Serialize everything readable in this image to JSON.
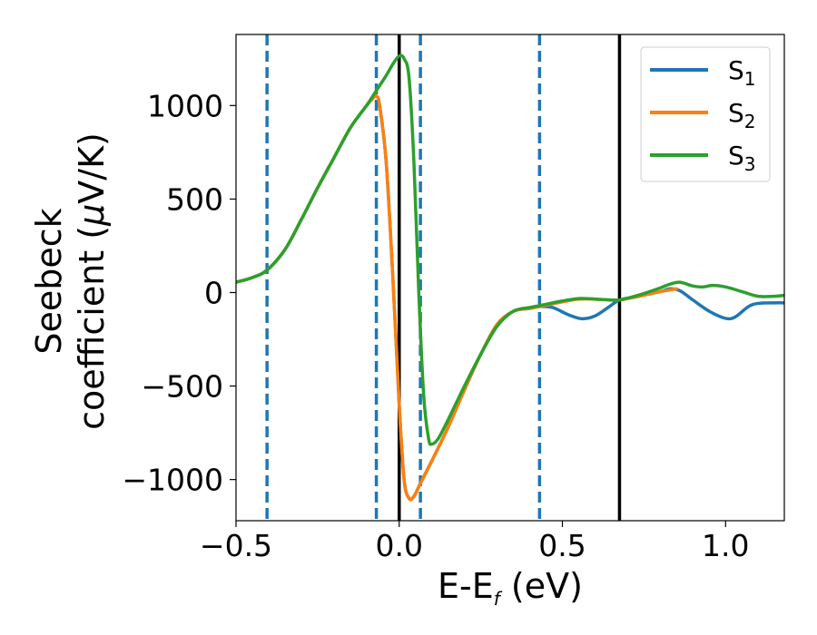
{
  "chart_data": {
    "type": "line",
    "title": "",
    "xlabel_main": "E-E",
    "xlabel_sub": "f",
    "xlabel_tail": " (eV)",
    "ylabel_line1": "Seebeck",
    "ylabel_line2_main": "coefficient  (",
    "ylabel_line2_mu": "μ",
    "ylabel_line2_tail": "V/K)",
    "xlim": [
      -0.5,
      1.18
    ],
    "ylim": [
      -1220,
      1380
    ],
    "xticks": [
      -0.5,
      0.0,
      0.5,
      1.0
    ],
    "xtick_labels": [
      "−0.5",
      "0.0",
      "0.5",
      "1.0"
    ],
    "yticks": [
      -1000,
      -500,
      0,
      500,
      1000
    ],
    "ytick_labels": [
      "−1000",
      "−500",
      "0",
      "500",
      "1000"
    ],
    "grid": false,
    "legend_position": "top-right",
    "vlines_dashed": [
      -0.405,
      -0.07,
      0.065,
      0.43
    ],
    "vlines_solid": [
      0.0,
      0.675
    ],
    "colors": {
      "S1": "#1f77b4",
      "S2": "#ff7f0e",
      "S3": "#2ca02c",
      "dashed": "#1f77b4",
      "solid": "#000000"
    },
    "series": [
      {
        "name": "S1",
        "label_main": "S",
        "label_sub": "1",
        "color": "#1f77b4",
        "points": [
          [
            -0.5,
            55
          ],
          [
            -0.45,
            80
          ],
          [
            -0.405,
            120
          ],
          [
            -0.35,
            230
          ],
          [
            -0.3,
            390
          ],
          [
            -0.25,
            560
          ],
          [
            -0.2,
            720
          ],
          [
            -0.15,
            880
          ],
          [
            -0.1,
            1000
          ],
          [
            -0.08,
            1040
          ],
          [
            -0.07,
            1050
          ],
          [
            -0.06,
            1000
          ],
          [
            -0.04,
            700
          ],
          [
            -0.02,
            100
          ],
          [
            0.0,
            -600
          ],
          [
            0.015,
            -1000
          ],
          [
            0.03,
            -1100
          ],
          [
            0.045,
            -1090
          ],
          [
            0.065,
            -1020
          ],
          [
            0.1,
            -900
          ],
          [
            0.15,
            -720
          ],
          [
            0.2,
            -520
          ],
          [
            0.25,
            -330
          ],
          [
            0.3,
            -170
          ],
          [
            0.35,
            -100
          ],
          [
            0.4,
            -85
          ],
          [
            0.43,
            -75
          ],
          [
            0.47,
            -80
          ],
          [
            0.52,
            -120
          ],
          [
            0.56,
            -140
          ],
          [
            0.6,
            -125
          ],
          [
            0.64,
            -80
          ],
          [
            0.675,
            -40
          ],
          [
            0.72,
            -25
          ],
          [
            0.76,
            -10
          ],
          [
            0.8,
            5
          ],
          [
            0.83,
            20
          ],
          [
            0.86,
            10
          ],
          [
            0.9,
            -40
          ],
          [
            0.95,
            -100
          ],
          [
            1.0,
            -138
          ],
          [
            1.03,
            -130
          ],
          [
            1.07,
            -75
          ],
          [
            1.1,
            -58
          ],
          [
            1.15,
            -55
          ],
          [
            1.18,
            -55
          ]
        ]
      },
      {
        "name": "S2",
        "label_main": "S",
        "label_sub": "2",
        "color": "#ff7f0e",
        "points": [
          [
            -0.5,
            55
          ],
          [
            -0.45,
            80
          ],
          [
            -0.405,
            120
          ],
          [
            -0.35,
            230
          ],
          [
            -0.3,
            390
          ],
          [
            -0.25,
            560
          ],
          [
            -0.2,
            720
          ],
          [
            -0.15,
            880
          ],
          [
            -0.1,
            1000
          ],
          [
            -0.08,
            1040
          ],
          [
            -0.07,
            1050
          ],
          [
            -0.06,
            1000
          ],
          [
            -0.04,
            700
          ],
          [
            -0.02,
            100
          ],
          [
            0.0,
            -600
          ],
          [
            0.015,
            -1000
          ],
          [
            0.03,
            -1100
          ],
          [
            0.045,
            -1090
          ],
          [
            0.065,
            -1020
          ],
          [
            0.1,
            -900
          ],
          [
            0.15,
            -720
          ],
          [
            0.2,
            -520
          ],
          [
            0.25,
            -330
          ],
          [
            0.3,
            -170
          ],
          [
            0.35,
            -100
          ],
          [
            0.4,
            -85
          ],
          [
            0.43,
            -75
          ],
          [
            0.5,
            -50
          ],
          [
            0.55,
            -35
          ],
          [
            0.6,
            -35
          ],
          [
            0.65,
            -40
          ],
          [
            0.675,
            -40
          ],
          [
            0.72,
            -25
          ],
          [
            0.76,
            -10
          ],
          [
            0.8,
            5
          ],
          [
            0.85,
            20
          ]
        ]
      },
      {
        "name": "S3",
        "label_main": "S",
        "label_sub": "3",
        "color": "#2ca02c",
        "points": [
          [
            -0.5,
            55
          ],
          [
            -0.45,
            80
          ],
          [
            -0.405,
            120
          ],
          [
            -0.35,
            230
          ],
          [
            -0.3,
            390
          ],
          [
            -0.25,
            560
          ],
          [
            -0.2,
            720
          ],
          [
            -0.15,
            880
          ],
          [
            -0.1,
            1000
          ],
          [
            -0.07,
            1080
          ],
          [
            -0.04,
            1160
          ],
          [
            -0.02,
            1220
          ],
          [
            0.0,
            1265
          ],
          [
            0.015,
            1250
          ],
          [
            0.03,
            1150
          ],
          [
            0.045,
            700
          ],
          [
            0.06,
            0
          ],
          [
            0.075,
            -550
          ],
          [
            0.09,
            -780
          ],
          [
            0.1,
            -810
          ],
          [
            0.12,
            -780
          ],
          [
            0.15,
            -680
          ],
          [
            0.2,
            -500
          ],
          [
            0.25,
            -330
          ],
          [
            0.3,
            -180
          ],
          [
            0.35,
            -100
          ],
          [
            0.4,
            -80
          ],
          [
            0.43,
            -70
          ],
          [
            0.5,
            -45
          ],
          [
            0.55,
            -32
          ],
          [
            0.6,
            -35
          ],
          [
            0.65,
            -40
          ],
          [
            0.675,
            -40
          ],
          [
            0.7,
            -30
          ],
          [
            0.75,
            -5
          ],
          [
            0.8,
            25
          ],
          [
            0.83,
            45
          ],
          [
            0.86,
            55
          ],
          [
            0.9,
            35
          ],
          [
            0.93,
            30
          ],
          [
            0.96,
            38
          ],
          [
            1.0,
            30
          ],
          [
            1.05,
            5
          ],
          [
            1.1,
            -20
          ],
          [
            1.15,
            -20
          ],
          [
            1.18,
            -15
          ]
        ]
      }
    ]
  }
}
